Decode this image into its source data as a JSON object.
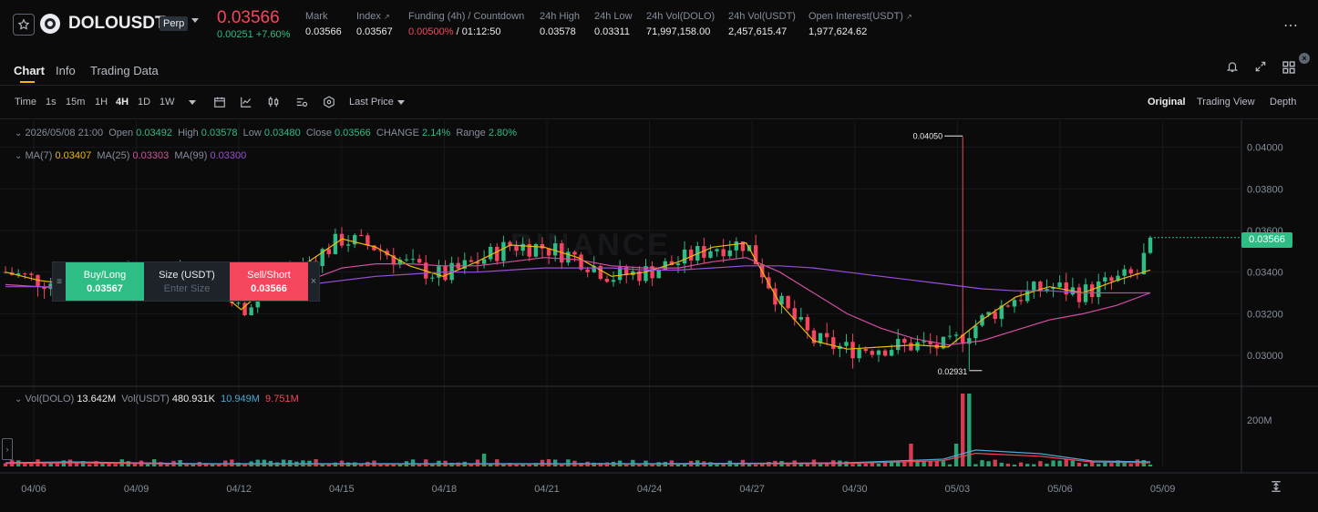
{
  "header": {
    "symbol": "DOLOUSDT",
    "badge": "Perp",
    "last_price": "0.03566",
    "change": "0.00251 +7.60%",
    "stats": [
      {
        "label": "Mark",
        "value": "0.03566"
      },
      {
        "label": "Index",
        "value": "0.03567"
      },
      {
        "label": "Funding (4h) / Countdown",
        "value_red": "0.00500%",
        "value": "/ 01:12:50"
      },
      {
        "label": "24h High",
        "value": "0.03578"
      },
      {
        "label": "24h Low",
        "value": "0.03311"
      },
      {
        "label": "24h Vol(DOLO)",
        "value": "71,997,158.00"
      },
      {
        "label": "24h Vol(USDT)",
        "value": "2,457,615.47"
      },
      {
        "label": "Open Interest(USDT)",
        "value": "1,977,624.62"
      }
    ]
  },
  "tabs": [
    "Chart",
    "Info",
    "Trading Data"
  ],
  "toolbar": {
    "time_label": "Time",
    "intervals": [
      "1s",
      "15m",
      "1H",
      "4H",
      "1D",
      "1W"
    ],
    "active_interval": "4H",
    "price_type": "Last Price",
    "views": [
      "Original",
      "Trading View",
      "Depth"
    ],
    "active_view": "Original"
  },
  "ohlc": {
    "date": "2026/05/08 21:00",
    "open_label": "Open",
    "open": "0.03492",
    "high_label": "High",
    "high": "0.03578",
    "low_label": "Low",
    "low": "0.03480",
    "close_label": "Close",
    "close": "0.03566",
    "change_label": "CHANGE",
    "change": "2.14%",
    "range_label": "Range",
    "range": "2.80%"
  },
  "ma": {
    "ma7_label": "MA(7)",
    "ma7": "0.03407",
    "ma25_label": "MA(25)",
    "ma25": "0.03303",
    "ma99_label": "MA(99)",
    "ma99": "0.03300"
  },
  "volume": {
    "vol_dolo_label": "Vol(DOLO)",
    "vol_dolo": "13.642M",
    "vol_usdt_label": "Vol(USDT)",
    "vol_usdt": "480.931K",
    "v1": "10.949M",
    "v2": "9.751M",
    "axis_label": "200M"
  },
  "order_widget": {
    "buy_label": "Buy/Long",
    "buy_price": "0.03567",
    "size_label": "Size (USDT)",
    "size_placeholder": "Enter Size",
    "sell_label": "Sell/Short",
    "sell_price": "0.03566"
  },
  "annotations": {
    "high": "0.04050",
    "low": "0.02931"
  },
  "price_tag": "0.03566",
  "watermark": "BINANCE",
  "colors": {
    "up": "#2ebd85",
    "down": "#f6465d",
    "ma7": "#f0b90b",
    "ma25": "#d54fa0",
    "ma99": "#9a4fd6",
    "accent": "#f0b90b"
  },
  "chart_data": {
    "type": "candlestick",
    "y_ticks": [
      "0.04000",
      "0.03800",
      "0.03600",
      "0.03400",
      "0.03200",
      "0.03000"
    ],
    "ylim": [
      0.0286,
      0.0413
    ],
    "x_ticks": [
      "04/06",
      "04/09",
      "04/12",
      "04/15",
      "04/18",
      "04/21",
      "04/24",
      "04/27",
      "04/30",
      "05/03",
      "05/06",
      "05/09"
    ],
    "series": [
      {
        "name": "MA(7)",
        "approx_values": [
          0.034,
          0.0336,
          0.0334,
          0.0335,
          0.0338,
          0.0341,
          0.0335,
          0.0322,
          0.0336,
          0.0345,
          0.0356,
          0.0352,
          0.0343,
          0.0338,
          0.0345,
          0.0353,
          0.0352,
          0.0347,
          0.0338,
          0.034,
          0.0345,
          0.0352,
          0.0354,
          0.0325,
          0.0307,
          0.0303,
          0.0304,
          0.0305,
          0.0304,
          0.0317,
          0.0328,
          0.0333,
          0.033,
          0.0336,
          0.0341
        ]
      },
      {
        "name": "MA(25)",
        "approx_values": [
          0.0334,
          0.0333,
          0.0332,
          0.0333,
          0.0334,
          0.0335,
          0.0334,
          0.0328,
          0.033,
          0.0336,
          0.0342,
          0.0344,
          0.0344,
          0.0343,
          0.0343,
          0.0345,
          0.0347,
          0.0346,
          0.0343,
          0.0342,
          0.0342,
          0.0345,
          0.0347,
          0.034,
          0.033,
          0.032,
          0.0313,
          0.0308,
          0.0305,
          0.0307,
          0.0312,
          0.0317,
          0.032,
          0.0324,
          0.033
        ]
      },
      {
        "name": "MA(99)",
        "approx_values": [
          0.0333,
          0.0333,
          0.0333,
          0.0333,
          0.0333,
          0.0334,
          0.0334,
          0.0333,
          0.0333,
          0.0334,
          0.0336,
          0.0338,
          0.0339,
          0.034,
          0.034,
          0.0341,
          0.0342,
          0.0342,
          0.0342,
          0.0341,
          0.0341,
          0.0342,
          0.0343,
          0.0343,
          0.0342,
          0.034,
          0.0338,
          0.0336,
          0.0334,
          0.0332,
          0.0331,
          0.0331,
          0.033,
          0.033,
          0.033
        ]
      }
    ]
  }
}
